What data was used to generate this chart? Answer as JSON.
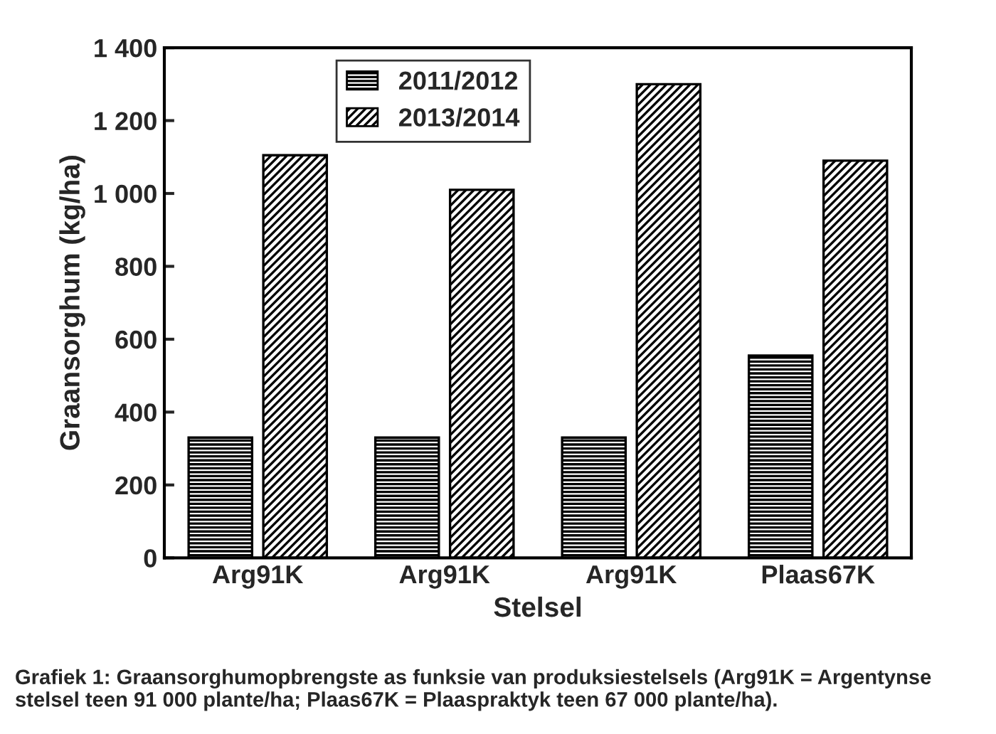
{
  "chart_data": {
    "type": "bar",
    "xlabel": "Stelsel",
    "ylabel": "Graansorghum (kg/ha)",
    "categories": [
      "Arg91K",
      "Arg91K",
      "Arg91K",
      "Plaas67K"
    ],
    "series": [
      {
        "name": "2011/2012",
        "color": "#000000",
        "values": [
          330,
          330,
          330,
          555
        ]
      },
      {
        "name": "2013/2014",
        "color": "#000000",
        "values": [
          1105,
          1010,
          1300,
          1090
        ]
      }
    ],
    "ylim": [
      0,
      1400
    ],
    "yticks": [
      0,
      200,
      400,
      600,
      800,
      {
        "value": 1000,
        "label": "1 000"
      },
      {
        "value": 1200,
        "label": "1 200"
      },
      {
        "value": 1400,
        "label": "1 400"
      }
    ],
    "legend": "top",
    "grid": false,
    "annotations": [
      "Grafiek 1: Graansorghumopbrengste as funksie van produksiestelsels (Arg91K = Argentynse stelsel teen 91 000 plante/ha; Plaas67K = Plaaspraktyk teen 67 000 plante/ha)."
    ]
  }
}
